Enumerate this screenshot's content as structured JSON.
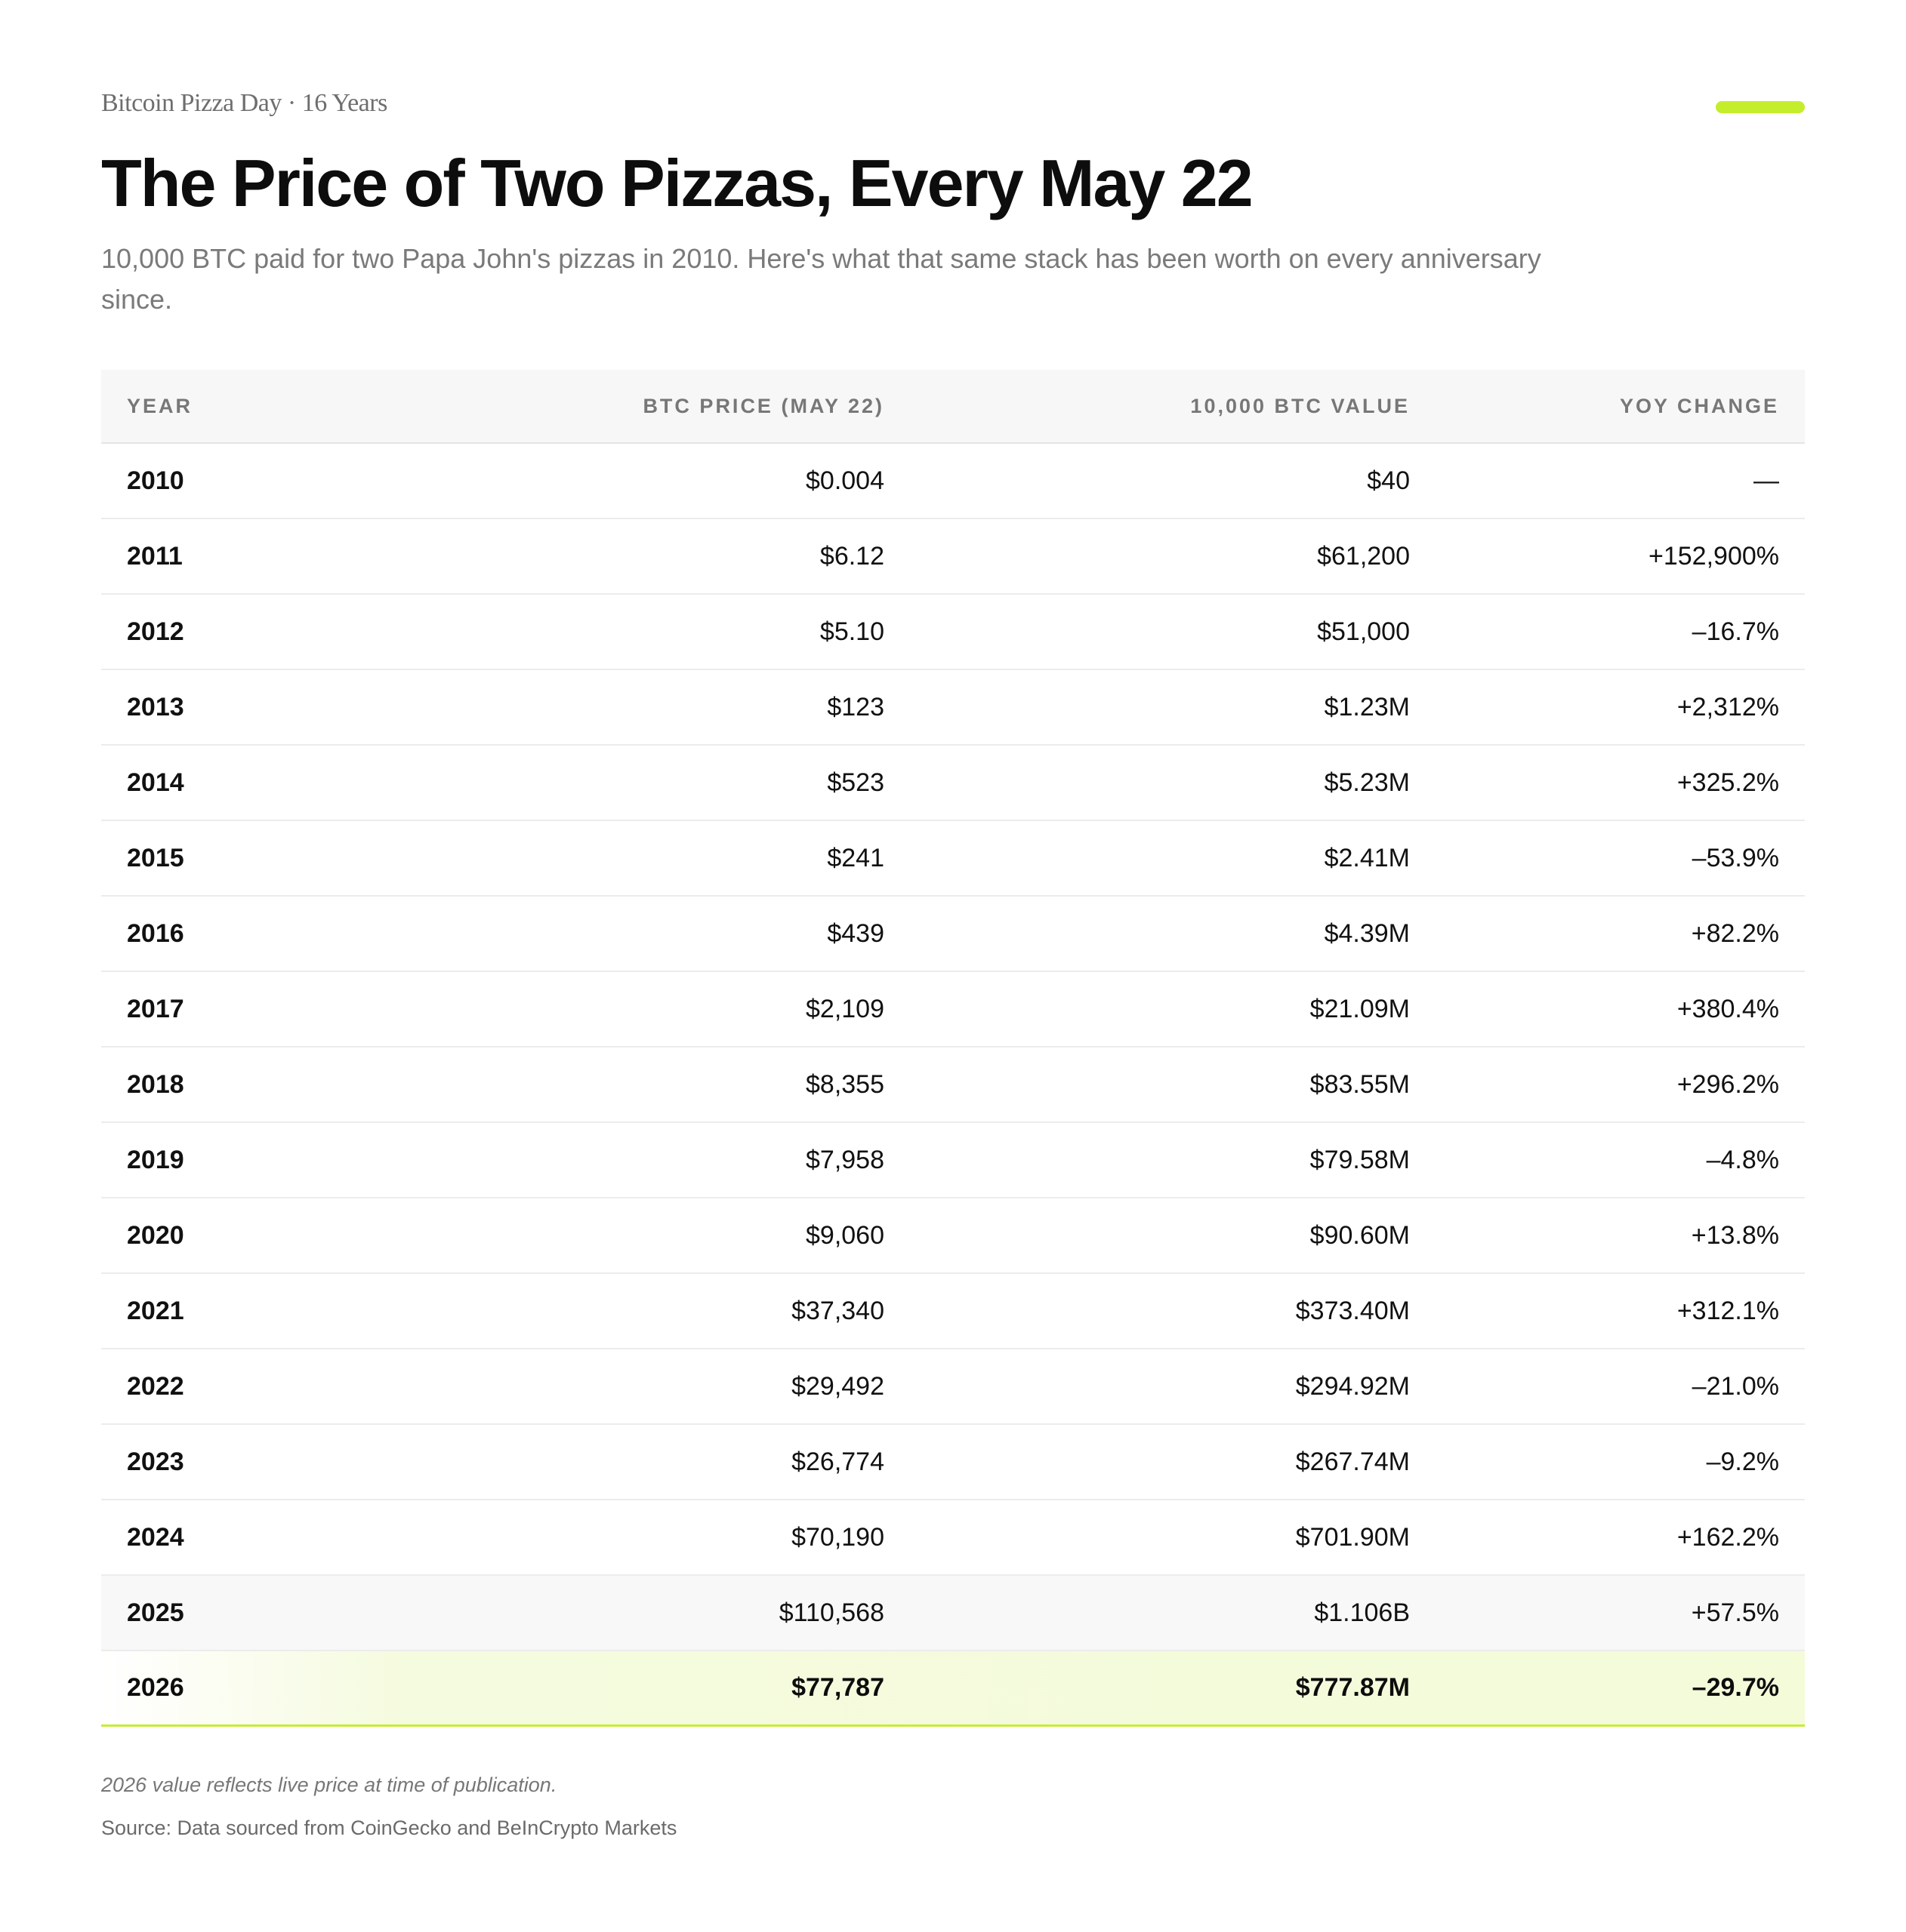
{
  "header": {
    "eyebrow": "Bitcoin Pizza Day · 16 Years",
    "title": "The Price of Two Pizzas, Every May 22",
    "subtitle": "10,000 BTC paid for two Papa John's pizzas in 2010. Here's what that same stack has been worth on every anniversary since."
  },
  "colors": {
    "accent": "#c4ee2b",
    "positive": "#1f7a1f",
    "negative": "#b3121a"
  },
  "table": {
    "columns": [
      "YEAR",
      "BTC PRICE (MAY 22)",
      "10,000 BTC VALUE",
      "YOY CHANGE"
    ],
    "rows": [
      {
        "year": "2010",
        "price": "$0.004",
        "value": "$40",
        "change": "—",
        "trend": "neutral"
      },
      {
        "year": "2011",
        "price": "$6.12",
        "value": "$61,200",
        "change": "+152,900%",
        "trend": "pos"
      },
      {
        "year": "2012",
        "price": "$5.10",
        "value": "$51,000",
        "change": "–16.7%",
        "trend": "neg"
      },
      {
        "year": "2013",
        "price": "$123",
        "value": "$1.23M",
        "change": "+2,312%",
        "trend": "pos"
      },
      {
        "year": "2014",
        "price": "$523",
        "value": "$5.23M",
        "change": "+325.2%",
        "trend": "pos"
      },
      {
        "year": "2015",
        "price": "$241",
        "value": "$2.41M",
        "change": "–53.9%",
        "trend": "neg"
      },
      {
        "year": "2016",
        "price": "$439",
        "value": "$4.39M",
        "change": "+82.2%",
        "trend": "pos"
      },
      {
        "year": "2017",
        "price": "$2,109",
        "value": "$21.09M",
        "change": "+380.4%",
        "trend": "pos"
      },
      {
        "year": "2018",
        "price": "$8,355",
        "value": "$83.55M",
        "change": "+296.2%",
        "trend": "pos"
      },
      {
        "year": "2019",
        "price": "$7,958",
        "value": "$79.58M",
        "change": "–4.8%",
        "trend": "neg"
      },
      {
        "year": "2020",
        "price": "$9,060",
        "value": "$90.60M",
        "change": "+13.8%",
        "trend": "pos"
      },
      {
        "year": "2021",
        "price": "$37,340",
        "value": "$373.40M",
        "change": "+312.1%",
        "trend": "pos"
      },
      {
        "year": "2022",
        "price": "$29,492",
        "value": "$294.92M",
        "change": "–21.0%",
        "trend": "neg"
      },
      {
        "year": "2023",
        "price": "$26,774",
        "value": "$267.74M",
        "change": "–9.2%",
        "trend": "neg"
      },
      {
        "year": "2024",
        "price": "$70,190",
        "value": "$701.90M",
        "change": "+162.2%",
        "trend": "pos"
      },
      {
        "year": "2025",
        "price": "$110,568",
        "value": "$1.106B",
        "change": "+57.5%",
        "trend": "pos"
      },
      {
        "year": "2026",
        "price": "$77,787",
        "value": "$777.87M",
        "change": "–29.7%",
        "trend": "neutral"
      }
    ]
  },
  "footer": {
    "footnote": "2026 value reflects live price at time of publication.",
    "source": "Source: Data sourced from CoinGecko and BeInCrypto Markets"
  }
}
